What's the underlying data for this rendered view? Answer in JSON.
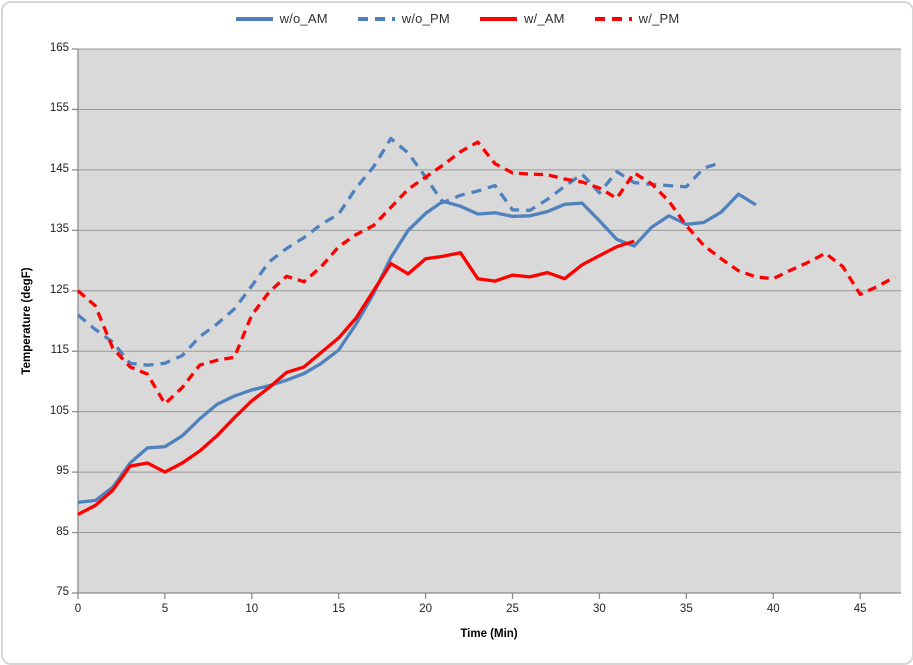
{
  "legend": {
    "items": [
      {
        "label": "w/o_AM",
        "color": "#4F81BD",
        "dash": "solid"
      },
      {
        "label": "w/o_PM",
        "color": "#4F81BD",
        "dash": "dashed"
      },
      {
        "label": "w/_AM",
        "color": "#FF0000",
        "dash": "solid"
      },
      {
        "label": "w/_PM",
        "color": "#FF0000",
        "dash": "dashed"
      }
    ]
  },
  "axes": {
    "x": {
      "title": "Time (Min)",
      "ticks": [
        0,
        5,
        10,
        15,
        20,
        25,
        30,
        35,
        40,
        45
      ],
      "min": 0,
      "max": 47.35
    },
    "y": {
      "title": "Temperature (degF)",
      "ticks": [
        75,
        85,
        95,
        105,
        115,
        125,
        135,
        145,
        155,
        165
      ],
      "min": 75,
      "max": 165
    }
  },
  "colors": {
    "plot_background": "#D9D9D9",
    "gridline": "#9A9A9A",
    "axis_line": "#8C8C8C",
    "series_blue": "#4F81BD",
    "series_red": "#FF0000",
    "tick_text": "#1F1F1F"
  },
  "chart_data": {
    "type": "line",
    "title": "",
    "xlabel": "Time (Min)",
    "ylabel": "Temperature (degF)",
    "xlim": [
      0,
      47.35
    ],
    "ylim": [
      75,
      165
    ],
    "grid": "horizontal-only",
    "legend_position": "top-center",
    "plot_background": "#D9D9D9",
    "series": [
      {
        "name": "w/o_AM",
        "color": "#4F81BD",
        "style": "solid",
        "x_start": 0,
        "x_step": 1,
        "values": [
          90,
          90.3,
          92.5,
          96.5,
          99,
          99.2,
          101,
          103.8,
          106.2,
          107.6,
          108.6,
          109.3,
          110.2,
          111.3,
          113,
          115.2,
          119.5,
          124.5,
          130.5,
          135,
          137.8,
          139.8,
          139,
          137.7,
          137.9,
          137.3,
          137.4,
          138.1,
          139.3,
          139.5,
          136.6,
          133.5,
          132.4,
          135.5,
          137.4,
          136,
          136.3,
          138,
          141,
          139.2
        ]
      },
      {
        "name": "w/o_PM",
        "color": "#4F81BD",
        "style": "dashed",
        "x_start": 0,
        "x_step": 1,
        "values": [
          121,
          118.6,
          116.5,
          113,
          112.7,
          113,
          114.3,
          117.4,
          119.5,
          122,
          125.8,
          129.8,
          132,
          133.8,
          136,
          137.7,
          142,
          145.5,
          150.2,
          147.8,
          143.8,
          139.6,
          140.8,
          141.5,
          142.4,
          138.4,
          138.3,
          140.1,
          142.3,
          144.3,
          141.2,
          144.7,
          142.9,
          142.6,
          142.4,
          142.2,
          145.3,
          146.2
        ]
      },
      {
        "name": "w/_AM",
        "color": "#FF0000",
        "style": "solid",
        "x_start": 0,
        "x_step": 1,
        "values": [
          88,
          89.5,
          92,
          96,
          96.5,
          95,
          96.5,
          98.5,
          101,
          104,
          106.8,
          109,
          111.5,
          112.4,
          114.8,
          117.2,
          120.5,
          125,
          129.5,
          127.8,
          130.3,
          130.7,
          131.3,
          127,
          126.6,
          127.6,
          127.3,
          128,
          127,
          129.3,
          130.8,
          132.3,
          133.2
        ]
      },
      {
        "name": "w/_PM",
        "color": "#FF0000",
        "style": "dashed",
        "x_start": 0,
        "x_step": 1,
        "values": [
          125,
          122.5,
          115.5,
          112.4,
          111.2,
          106.3,
          109,
          112.7,
          113.5,
          114,
          121,
          124.8,
          127.4,
          126.5,
          129,
          132.3,
          134.3,
          135.8,
          138.8,
          141.8,
          143.8,
          145.8,
          148,
          149.6,
          146,
          144.5,
          144.3,
          144.2,
          143.5,
          143,
          142,
          140.3,
          144.5,
          142.7,
          139.8,
          135.8,
          132.5,
          130.3,
          128.3,
          127.3,
          127,
          128.4,
          129.7,
          131.2,
          129,
          124.4,
          125.7,
          127.3
        ]
      }
    ]
  }
}
